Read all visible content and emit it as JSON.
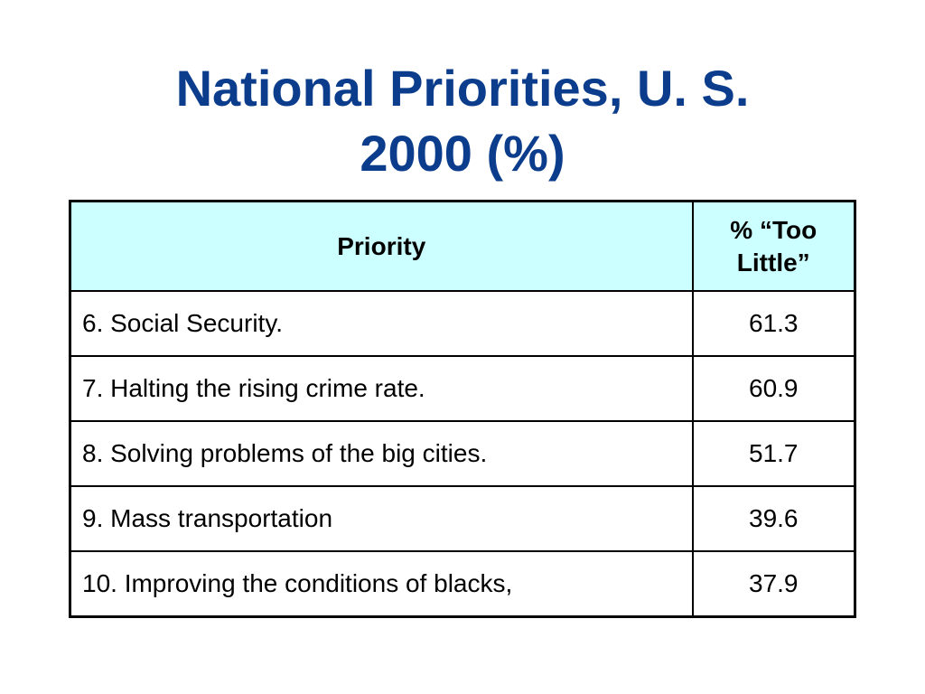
{
  "title": {
    "line1": "National Priorities, U. S.",
    "line2": "2000 (%)"
  },
  "table": {
    "headers": {
      "priority": "Priority",
      "value_line1": "% “Too",
      "value_line2": "Little”"
    },
    "rows": [
      {
        "priority": "6. Social Security.",
        "value": "61.3"
      },
      {
        "priority": "7. Halting the rising crime rate.",
        "value": "60.9"
      },
      {
        "priority": "8. Solving problems of the big cities.",
        "value": "51.7"
      },
      {
        "priority": "9. Mass transportation",
        "value": "39.6"
      },
      {
        "priority": "10. Improving the conditions of blacks,",
        "value": "37.9"
      }
    ]
  },
  "colors": {
    "title": "#0b3d8c",
    "header_background": "#ccffff",
    "border": "#000000"
  }
}
